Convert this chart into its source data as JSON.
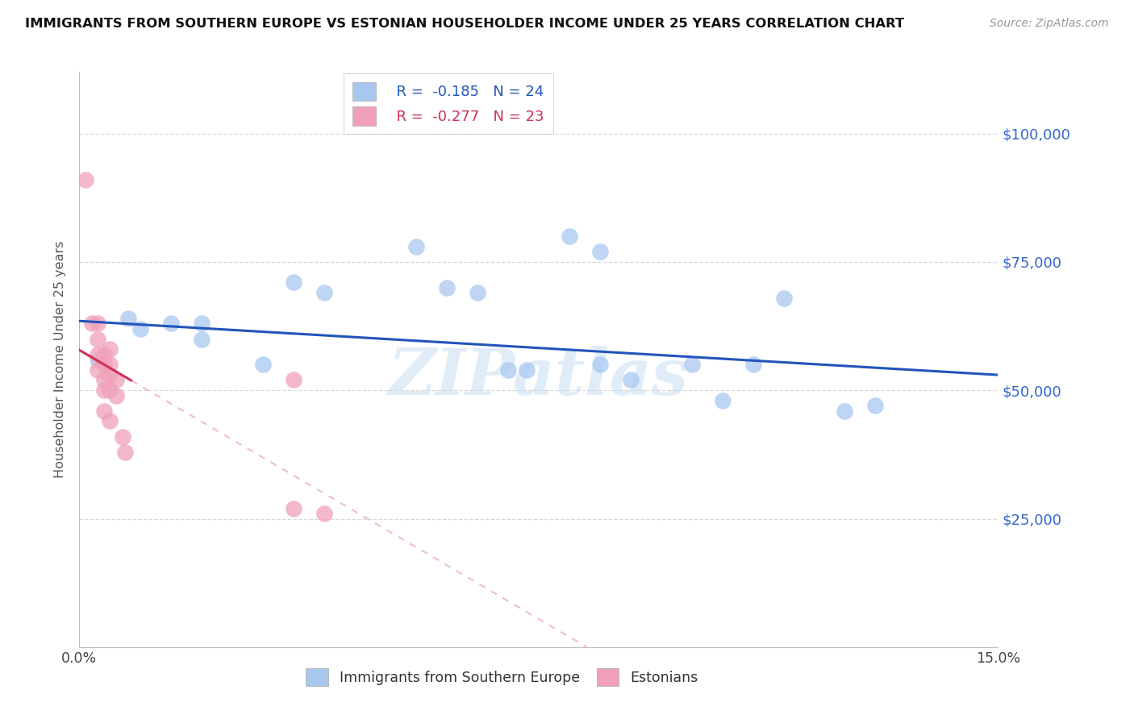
{
  "title": "IMMIGRANTS FROM SOUTHERN EUROPE VS ESTONIAN HOUSEHOLDER INCOME UNDER 25 YEARS CORRELATION CHART",
  "source": "Source: ZipAtlas.com",
  "ylabel": "Householder Income Under 25 years",
  "y_ticks": [
    0,
    25000,
    50000,
    75000,
    100000
  ],
  "y_tick_labels": [
    "",
    "$25,000",
    "$50,000",
    "$75,000",
    "$100,000"
  ],
  "xlim": [
    0.0,
    0.15
  ],
  "ylim": [
    0,
    112000
  ],
  "legend_blue_r": "R =  -0.185",
  "legend_blue_n": "N = 24",
  "legend_pink_r": "R =  -0.277",
  "legend_pink_n": "N = 23",
  "legend_label_blue": "Immigrants from Southern Europe",
  "legend_label_pink": "Estonians",
  "blue_color": "#a8c8f0",
  "pink_color": "#f0a0b8",
  "trendline_blue_color": "#2255bb",
  "trendline_pink_color": "#cc3355",
  "trendline_dashed_color": "#e8b0c0",
  "watermark": "ZIPatlas",
  "blue_scatter_x": [
    0.003,
    0.008,
    0.01,
    0.015,
    0.02,
    0.02,
    0.03,
    0.035,
    0.04,
    0.055,
    0.06,
    0.065,
    0.07,
    0.073,
    0.08,
    0.085,
    0.085,
    0.09,
    0.1,
    0.105,
    0.11,
    0.115,
    0.125,
    0.13
  ],
  "blue_scatter_y": [
    56000,
    64000,
    62000,
    63000,
    63000,
    60000,
    55000,
    71000,
    69000,
    78000,
    70000,
    69000,
    54000,
    54000,
    80000,
    77000,
    55000,
    52000,
    55000,
    48000,
    55000,
    68000,
    46000,
    47000
  ],
  "pink_scatter_x": [
    0.001,
    0.002,
    0.003,
    0.003,
    0.003,
    0.003,
    0.004,
    0.004,
    0.004,
    0.004,
    0.004,
    0.005,
    0.005,
    0.005,
    0.005,
    0.005,
    0.006,
    0.006,
    0.007,
    0.0075,
    0.035,
    0.035,
    0.04
  ],
  "pink_scatter_y": [
    91000,
    63000,
    63000,
    60000,
    57000,
    54000,
    57000,
    55000,
    52000,
    50000,
    46000,
    58000,
    55000,
    53000,
    50000,
    44000,
    52000,
    49000,
    41000,
    38000,
    52000,
    27000,
    26000
  ],
  "grid_color": "#d8d8d8",
  "background_color": "#ffffff",
  "trendline_blue_x0": 0.0,
  "trendline_blue_x1": 0.15,
  "trendline_blue_y0": 63500,
  "trendline_blue_y1": 53000,
  "trendline_pink_solid_x0": 0.0,
  "trendline_pink_solid_x1": 0.008,
  "trendline_pink_y0": 62000,
  "trendline_pink_y1": 50000,
  "trendline_pink_dashed_x0": 0.008,
  "trendline_pink_dashed_x1": 0.15
}
